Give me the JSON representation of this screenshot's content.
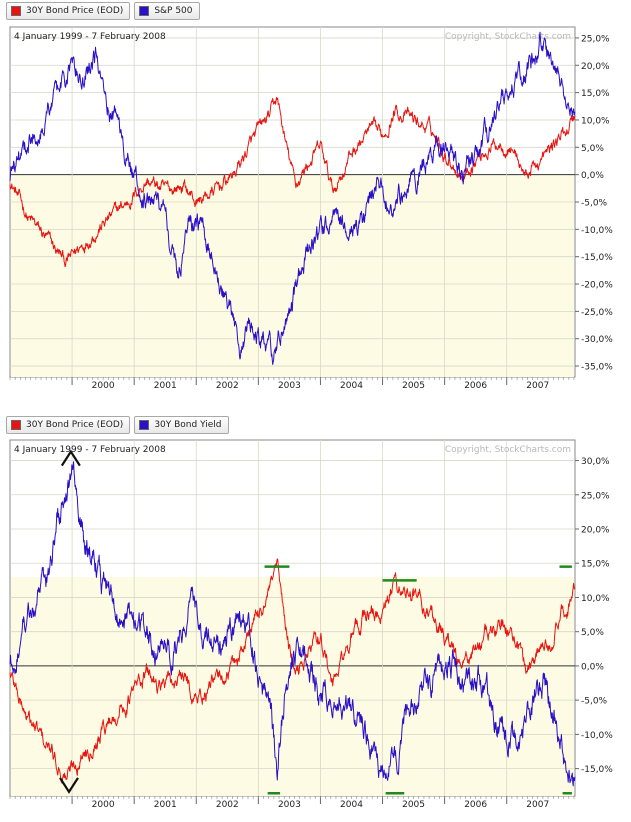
{
  "colors": {
    "red": "#e8140f",
    "blue": "#2a10c8",
    "band": "#fdfbe3",
    "grid": "#d8d8c8",
    "copyright": "#b8b8b8",
    "marker": "#1f8a1f"
  },
  "chart_data": [
    {
      "type": "line",
      "title": "4 January 1999 - 7 February 2008",
      "copyright": "Copyright, StockCharts.com",
      "legend": [
        "30Y Bond Price (EOD)",
        "S&P 500"
      ],
      "xlabel": "",
      "ylabel": "",
      "x_ticks": [
        "2000",
        "2001",
        "2002",
        "2003",
        "2004",
        "2005",
        "2006",
        "2007"
      ],
      "x_range": [
        1999.0,
        2008.1
      ],
      "ylim": [
        -37,
        27
      ],
      "y_ticks": [
        {
          "v": 25,
          "label": "25,0%"
        },
        {
          "v": 20,
          "label": "20,0%"
        },
        {
          "v": 15,
          "label": "15,0%"
        },
        {
          "v": 10,
          "label": "10,0%"
        },
        {
          "v": 5,
          "label": "5,0%"
        },
        {
          "v": 0,
          "label": "0,0%"
        },
        {
          "v": -5,
          "label": "-5,0%"
        },
        {
          "v": -10,
          "label": "-10,0%"
        },
        {
          "v": -15,
          "label": "-15,0%"
        },
        {
          "v": -20,
          "label": "-20,0%"
        },
        {
          "v": -25,
          "label": "-25,0%"
        },
        {
          "v": -30,
          "label": "-30,0%"
        },
        {
          "v": -35,
          "label": "-35,0%"
        }
      ],
      "series": [
        {
          "name": "30Y Bond Price (EOD)",
          "color": "#e8140f",
          "x": [
            1999.0,
            1999.3,
            1999.6,
            1999.9,
            2000.0,
            2000.3,
            2000.6,
            2000.9,
            2001.2,
            2001.5,
            2001.8,
            2002.0,
            2002.3,
            2002.6,
            2002.9,
            2003.2,
            2003.3,
            2003.45,
            2003.6,
            2003.8,
            2004.0,
            2004.2,
            2004.5,
            2004.8,
            2005.0,
            2005.2,
            2005.5,
            2005.8,
            2006.0,
            2006.3,
            2006.6,
            2006.9,
            2007.1,
            2007.3,
            2007.6,
            2007.8,
            2007.95,
            2008.1
          ],
          "values": [
            -1,
            -8,
            -12,
            -16,
            -15,
            -11,
            -8,
            -5,
            -1,
            -3,
            -2,
            -5,
            -3,
            0,
            6,
            11,
            14,
            5,
            -2,
            2,
            5,
            -3,
            4,
            8,
            7,
            12,
            10,
            8,
            4,
            0,
            4,
            6,
            5,
            0,
            3,
            6,
            8,
            11
          ]
        },
        {
          "name": "S&P 500",
          "color": "#2a10c8",
          "x": [
            1999.0,
            1999.2,
            1999.5,
            1999.8,
            2000.0,
            2000.2,
            2000.4,
            2000.6,
            2000.8,
            2000.95,
            2001.1,
            2001.3,
            2001.5,
            2001.7,
            2001.9,
            2002.0,
            2002.2,
            2002.4,
            2002.55,
            2002.7,
            2002.85,
            2002.95,
            2003.1,
            2003.25,
            2003.5,
            2003.8,
            2004.0,
            2004.2,
            2004.5,
            2004.7,
            2004.9,
            2005.1,
            2005.3,
            2005.5,
            2005.7,
            2005.9,
            2006.1,
            2006.3,
            2006.5,
            2006.7,
            2006.9,
            2007.1,
            2007.3,
            2007.45,
            2007.55,
            2007.7,
            2007.85,
            2008.0,
            2008.1
          ],
          "values": [
            0,
            5,
            10,
            15,
            20,
            17,
            22,
            13,
            8,
            0,
            -3,
            -5,
            -8,
            -18,
            -6,
            -10,
            -12,
            -20,
            -25,
            -34,
            -27,
            -30,
            -32,
            -33,
            -25,
            -15,
            -12,
            -8,
            -10,
            -10,
            -2,
            -5,
            -3,
            0,
            2,
            5,
            4,
            1,
            2,
            8,
            12,
            15,
            18,
            22,
            25,
            19,
            20,
            14,
            9
          ]
        }
      ]
    },
    {
      "type": "line",
      "title": "4 January 1999 - 7 February 2008",
      "copyright": "Copyright, StockCharts.com",
      "legend": [
        "30Y Bond Price (EOD)",
        "30Y Bond Yield"
      ],
      "xlabel": "",
      "ylabel": "",
      "x_ticks": [
        "2000",
        "2001",
        "2002",
        "2003",
        "2004",
        "2005",
        "2006",
        "2007"
      ],
      "x_range": [
        1999.0,
        2008.1
      ],
      "ylim": [
        -19,
        33
      ],
      "y_ticks": [
        {
          "v": 30,
          "label": "30,0%"
        },
        {
          "v": 25,
          "label": "25,0%"
        },
        {
          "v": 20,
          "label": "20,0%"
        },
        {
          "v": 15,
          "label": "15,0%"
        },
        {
          "v": 10,
          "label": "10,0%"
        },
        {
          "v": 5,
          "label": "5,0%"
        },
        {
          "v": 0,
          "label": "0,0%"
        },
        {
          "v": -5,
          "label": "-5,0%"
        },
        {
          "v": -10,
          "label": "-10,0%"
        },
        {
          "v": -15,
          "label": "-15,0%"
        }
      ],
      "series": [
        {
          "name": "30Y Bond Price (EOD)",
          "color": "#e8140f",
          "x": [
            1999.0,
            1999.3,
            1999.6,
            1999.9,
            2000.0,
            2000.3,
            2000.6,
            2000.9,
            2001.2,
            2001.5,
            2001.8,
            2002.0,
            2002.3,
            2002.6,
            2002.9,
            2003.2,
            2003.3,
            2003.45,
            2003.6,
            2003.8,
            2004.0,
            2004.2,
            2004.5,
            2004.8,
            2005.0,
            2005.2,
            2005.5,
            2005.8,
            2006.0,
            2006.3,
            2006.6,
            2006.9,
            2007.1,
            2007.3,
            2007.6,
            2007.8,
            2007.95,
            2008.1
          ],
          "values": [
            -1,
            -8,
            -12,
            -16,
            -15,
            -11,
            -8,
            -5,
            -1,
            -3,
            -2,
            -5,
            -3,
            0,
            6,
            11,
            14,
            5,
            -2,
            2,
            5,
            -3,
            4,
            8,
            7,
            12,
            10,
            8,
            4,
            0,
            4,
            6,
            5,
            0,
            3,
            6,
            8,
            11
          ]
        },
        {
          "name": "30Y Bond Yield",
          "color": "#2a10c8",
          "x": [
            1999.0,
            1999.3,
            1999.6,
            1999.8,
            2000.0,
            2000.2,
            2000.5,
            2000.8,
            2001.0,
            2001.3,
            2001.6,
            2001.9,
            2002.1,
            2002.4,
            2002.7,
            2002.9,
            2003.0,
            2003.2,
            2003.3,
            2003.45,
            2003.6,
            2003.8,
            2004.0,
            2004.3,
            2004.6,
            2004.8,
            2005.0,
            2005.2,
            2005.4,
            2005.6,
            2005.9,
            2006.1,
            2006.3,
            2006.6,
            2006.8,
            2007.0,
            2007.2,
            2007.4,
            2007.6,
            2007.75,
            2007.9,
            2008.0,
            2008.1
          ],
          "values": [
            0,
            8,
            14,
            22,
            28,
            18,
            12,
            8,
            6,
            4,
            2,
            10,
            6,
            2,
            8,
            3,
            -2,
            -6,
            -17,
            -2,
            4,
            0,
            -5,
            -3,
            -8,
            -12,
            -16,
            -14,
            -8,
            -4,
            -2,
            0,
            -2,
            -3,
            -8,
            -10,
            -12,
            -5,
            -2,
            -8,
            -12,
            -15,
            -17
          ]
        }
      ],
      "annotations": [
        "peak-arrow-2000",
        "trough-arrow-2000",
        "top-markers",
        "bottom-markers"
      ]
    }
  ]
}
